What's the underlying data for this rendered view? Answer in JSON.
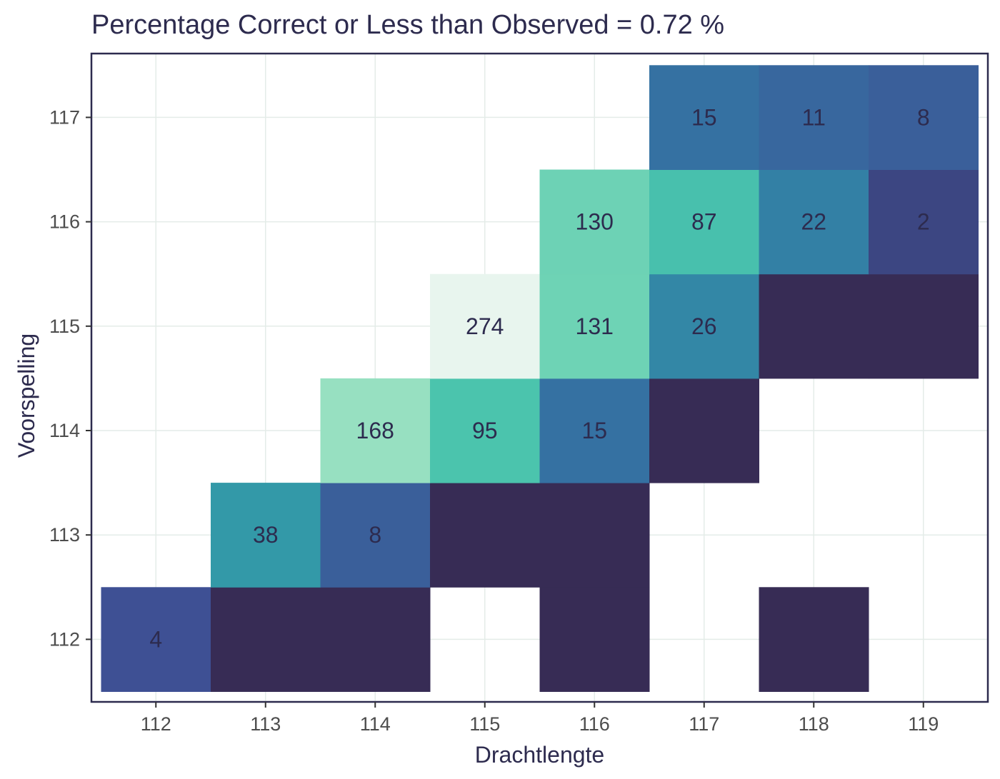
{
  "chart_data": {
    "type": "heatmap",
    "title": "Percentage Correct or Less than Observed =  0.72 %",
    "xlabel": "Drachtlengte",
    "ylabel": "Voorspelling",
    "x_ticks": [
      "112",
      "113",
      "114",
      "115",
      "116",
      "117",
      "118",
      "119"
    ],
    "y_ticks": [
      "112",
      "113",
      "114",
      "115",
      "116",
      "117"
    ],
    "xlim": [
      111.5,
      119.5
    ],
    "ylim": [
      111.5,
      117.5
    ],
    "grid": true,
    "legend": "none",
    "colors": {
      "low": "#372c55",
      "high": "#e8f5ee",
      "label_dark": "#2d2b4e",
      "panel_border": "#2d2b4e",
      "grid": "#e4ece8"
    },
    "cells": [
      {
        "x": 112,
        "y": 112,
        "value": 4,
        "label": "4"
      },
      {
        "x": 113,
        "y": 112,
        "value": 0,
        "label": ""
      },
      {
        "x": 114,
        "y": 112,
        "value": 0,
        "label": ""
      },
      {
        "x": 116,
        "y": 112,
        "value": 0,
        "label": ""
      },
      {
        "x": 118,
        "y": 112,
        "value": 0,
        "label": ""
      },
      {
        "x": 113,
        "y": 113,
        "value": 38,
        "label": "38"
      },
      {
        "x": 114,
        "y": 113,
        "value": 8,
        "label": "8"
      },
      {
        "x": 115,
        "y": 113,
        "value": 0,
        "label": ""
      },
      {
        "x": 116,
        "y": 113,
        "value": 0,
        "label": ""
      },
      {
        "x": 114,
        "y": 114,
        "value": 168,
        "label": "168"
      },
      {
        "x": 115,
        "y": 114,
        "value": 95,
        "label": "95"
      },
      {
        "x": 116,
        "y": 114,
        "value": 15,
        "label": "15"
      },
      {
        "x": 117,
        "y": 114,
        "value": 0,
        "label": ""
      },
      {
        "x": 115,
        "y": 115,
        "value": 274,
        "label": "274"
      },
      {
        "x": 116,
        "y": 115,
        "value": 131,
        "label": "131"
      },
      {
        "x": 117,
        "y": 115,
        "value": 26,
        "label": "26"
      },
      {
        "x": 118,
        "y": 115,
        "value": 0,
        "label": ""
      },
      {
        "x": 119,
        "y": 115,
        "value": 0,
        "label": ""
      },
      {
        "x": 116,
        "y": 116,
        "value": 130,
        "label": "130"
      },
      {
        "x": 117,
        "y": 116,
        "value": 87,
        "label": "87"
      },
      {
        "x": 118,
        "y": 116,
        "value": 22,
        "label": "22"
      },
      {
        "x": 119,
        "y": 116,
        "value": 2,
        "label": "2"
      },
      {
        "x": 117,
        "y": 117,
        "value": 15,
        "label": "15"
      },
      {
        "x": 118,
        "y": 117,
        "value": 11,
        "label": "11"
      },
      {
        "x": 119,
        "y": 117,
        "value": 8,
        "label": "8"
      }
    ]
  }
}
